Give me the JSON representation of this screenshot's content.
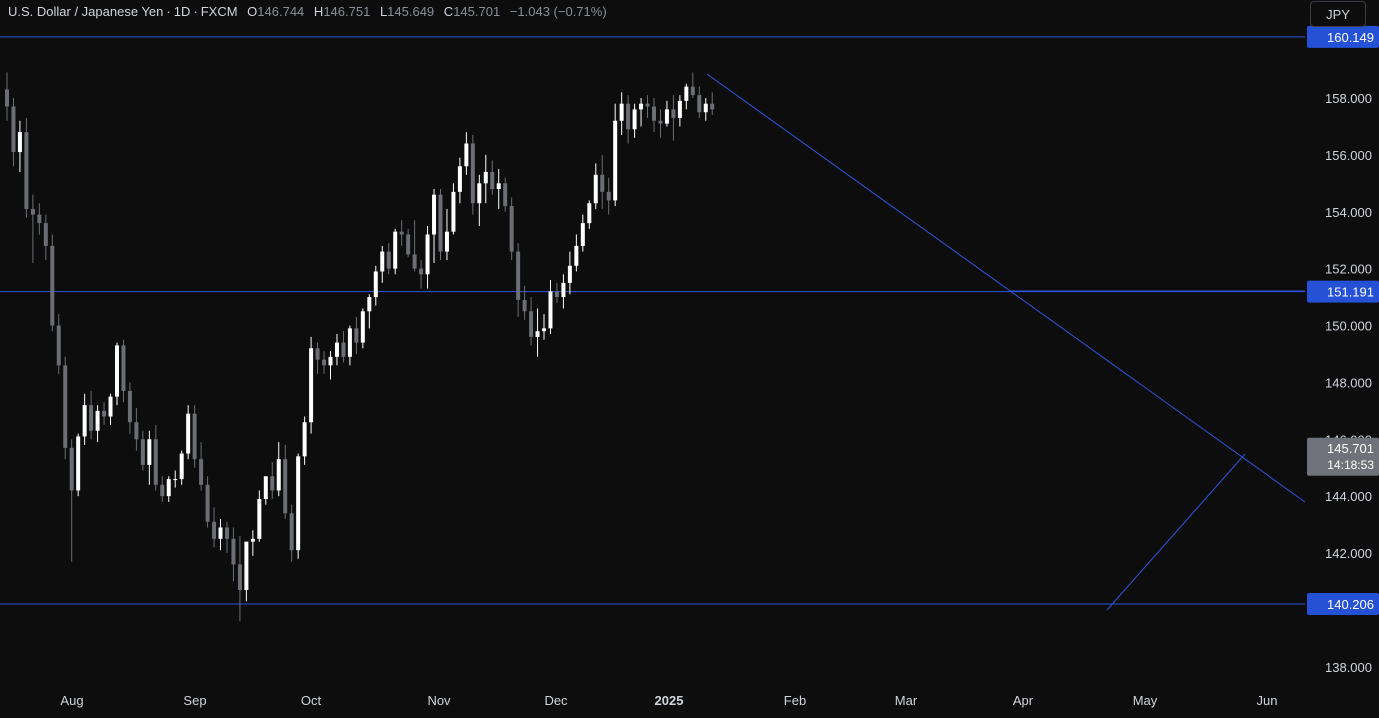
{
  "header": {
    "symbol": "U.S. Dollar / Japanese Yen",
    "interval": "1D",
    "exchange": "FXCM",
    "open_label": "O",
    "open": "146.744",
    "high_label": "H",
    "high": "146.751",
    "low_label": "L",
    "low": "145.649",
    "close_label": "C",
    "close": "145.701",
    "change": "−1.043 (−0.71%)",
    "currency": "JPY"
  },
  "colors": {
    "background": "#0d0d0d",
    "bull": "#ffffff",
    "bear": "#6b6e75",
    "line": "#2f55e0",
    "label_bg": "#2451d6",
    "price_label_bg": "#6f727a",
    "axis_text": "#d1d4dc"
  },
  "chart_data": {
    "type": "candlestick",
    "y_ticks": [
      "138.000",
      "140.000",
      "142.000",
      "144.000",
      "146.000",
      "148.000",
      "150.000",
      "152.000",
      "154.000",
      "156.000",
      "158.000"
    ],
    "ylim": [
      137.0,
      161.2
    ],
    "x_labels": [
      "Aug",
      "Sep",
      "Oct",
      "Nov",
      "Dec",
      "2025",
      "Feb",
      "Mar",
      "Apr",
      "May",
      "Jun"
    ],
    "horizontal_levels": [
      {
        "value": 160.149,
        "label": "160.149"
      },
      {
        "value": 151.191,
        "label": "151.191"
      },
      {
        "value": 140.206,
        "label": "140.206"
      }
    ],
    "last_price": {
      "value": 145.701,
      "label": "145.701",
      "countdown": "14:18:53"
    },
    "trendlines": [
      {
        "name": "falling-trendline",
        "from": {
          "bar": 0,
          "price": 158.9
        },
        "to": {
          "bar": 4,
          "price": 143.8
        }
      },
      {
        "name": "rising-trendline",
        "from": {
          "bar": 1,
          "price": 139.9
        },
        "to": {
          "bar": 2,
          "price": 145.3
        }
      },
      {
        "name": "march-high-line",
        "from": {
          "bar": 3,
          "price": 151.191
        },
        "to": {
          "bar": 5,
          "price": 151.191
        }
      }
    ],
    "candles_ohlc": [
      [
        158.3,
        158.9,
        157.2,
        157.7
      ],
      [
        157.7,
        158.0,
        155.6,
        156.1
      ],
      [
        156.1,
        157.2,
        155.4,
        156.8
      ],
      [
        156.8,
        157.3,
        153.8,
        154.1
      ],
      [
        154.1,
        154.6,
        152.2,
        153.9
      ],
      [
        153.9,
        154.3,
        153.2,
        153.6
      ],
      [
        153.6,
        153.9,
        152.3,
        152.8
      ],
      [
        152.8,
        153.2,
        149.8,
        150.0
      ],
      [
        150.0,
        150.4,
        148.3,
        148.6
      ],
      [
        148.6,
        148.9,
        145.3,
        145.7
      ],
      [
        145.7,
        146.0,
        141.7,
        144.2
      ],
      [
        144.2,
        146.2,
        144.0,
        146.1
      ],
      [
        146.1,
        147.6,
        145.8,
        147.2
      ],
      [
        147.2,
        147.7,
        146.0,
        146.3
      ],
      [
        146.3,
        147.2,
        145.9,
        147.0
      ],
      [
        147.0,
        147.3,
        146.5,
        146.8
      ],
      [
        146.8,
        147.6,
        146.5,
        147.5
      ],
      [
        147.5,
        149.4,
        147.2,
        149.3
      ],
      [
        149.3,
        149.5,
        147.3,
        147.7
      ],
      [
        147.7,
        148.0,
        146.2,
        146.6
      ],
      [
        146.6,
        147.1,
        145.6,
        146.0
      ],
      [
        146.0,
        146.3,
        144.9,
        145.1
      ],
      [
        145.1,
        146.3,
        144.4,
        146.0
      ],
      [
        146.0,
        146.5,
        144.2,
        144.4
      ],
      [
        144.4,
        144.7,
        143.8,
        144.0
      ],
      [
        144.0,
        144.7,
        143.8,
        144.6
      ],
      [
        144.6,
        144.9,
        144.3,
        144.6
      ],
      [
        144.6,
        145.6,
        144.4,
        145.5
      ],
      [
        145.5,
        147.2,
        145.3,
        146.9
      ],
      [
        146.9,
        147.2,
        145.0,
        145.3
      ],
      [
        145.3,
        145.9,
        144.2,
        144.4
      ],
      [
        144.4,
        144.7,
        142.9,
        143.1
      ],
      [
        143.1,
        143.6,
        142.2,
        142.5
      ],
      [
        142.5,
        143.2,
        142.1,
        142.9
      ],
      [
        142.9,
        143.1,
        142.0,
        142.5
      ],
      [
        142.5,
        142.9,
        141.0,
        141.6
      ],
      [
        141.6,
        142.6,
        139.6,
        140.7
      ],
      [
        140.7,
        142.4,
        140.3,
        142.4
      ],
      [
        142.4,
        142.8,
        141.9,
        142.5
      ],
      [
        142.5,
        144.2,
        142.4,
        143.9
      ],
      [
        143.9,
        144.7,
        143.7,
        144.7
      ],
      [
        144.7,
        145.2,
        143.9,
        144.2
      ],
      [
        144.2,
        145.9,
        144.0,
        145.3
      ],
      [
        145.3,
        145.8,
        143.2,
        143.4
      ],
      [
        143.4,
        143.7,
        141.7,
        142.1
      ],
      [
        142.1,
        145.5,
        141.8,
        145.4
      ],
      [
        145.4,
        146.8,
        145.1,
        146.6
      ],
      [
        146.6,
        149.6,
        146.2,
        149.2
      ],
      [
        149.2,
        149.4,
        148.3,
        148.8
      ],
      [
        148.8,
        149.1,
        148.3,
        148.6
      ],
      [
        148.6,
        149.1,
        148.1,
        148.9
      ],
      [
        148.9,
        149.7,
        148.6,
        149.4
      ],
      [
        149.4,
        149.8,
        148.7,
        148.9
      ],
      [
        148.9,
        150.0,
        148.6,
        149.9
      ],
      [
        149.9,
        150.3,
        149.0,
        149.4
      ],
      [
        149.4,
        150.6,
        149.2,
        150.5
      ],
      [
        150.5,
        151.1,
        149.9,
        151.0
      ],
      [
        151.0,
        152.1,
        150.7,
        151.9
      ],
      [
        151.9,
        152.8,
        151.5,
        152.6
      ],
      [
        152.6,
        152.9,
        151.8,
        152.0
      ],
      [
        152.0,
        153.4,
        151.8,
        153.3
      ],
      [
        153.3,
        153.7,
        152.8,
        153.2
      ],
      [
        153.2,
        153.4,
        152.4,
        152.5
      ],
      [
        152.5,
        153.7,
        151.9,
        152.0
      ],
      [
        152.0,
        152.3,
        151.3,
        151.8
      ],
      [
        151.8,
        153.5,
        151.3,
        153.2
      ],
      [
        153.2,
        154.8,
        152.2,
        154.6
      ],
      [
        154.6,
        154.8,
        152.3,
        152.6
      ],
      [
        152.6,
        154.1,
        152.3,
        153.3
      ],
      [
        153.3,
        155.0,
        153.2,
        154.7
      ],
      [
        154.7,
        155.9,
        154.3,
        155.6
      ],
      [
        155.6,
        156.8,
        155.3,
        156.4
      ],
      [
        156.4,
        156.7,
        153.9,
        154.3
      ],
      [
        154.3,
        155.3,
        153.5,
        155.0
      ],
      [
        155.0,
        156.0,
        154.3,
        155.4
      ],
      [
        155.4,
        155.8,
        154.6,
        154.8
      ],
      [
        154.8,
        155.5,
        154.1,
        155.0
      ],
      [
        155.0,
        155.2,
        154.0,
        154.2
      ],
      [
        154.2,
        154.5,
        152.3,
        152.6
      ],
      [
        152.6,
        152.9,
        150.3,
        150.9
      ],
      [
        150.9,
        151.4,
        150.2,
        150.5
      ],
      [
        150.5,
        151.0,
        149.3,
        149.6
      ],
      [
        149.6,
        150.6,
        148.9,
        149.8
      ],
      [
        149.8,
        150.4,
        149.5,
        149.9
      ],
      [
        149.9,
        151.6,
        149.7,
        151.2
      ],
      [
        151.2,
        151.5,
        150.8,
        151.0
      ],
      [
        151.0,
        151.8,
        150.6,
        151.5
      ],
      [
        151.5,
        152.6,
        151.1,
        152.1
      ],
      [
        152.1,
        153.2,
        151.9,
        152.8
      ],
      [
        152.8,
        153.9,
        152.6,
        153.6
      ],
      [
        153.6,
        154.4,
        153.4,
        154.3
      ],
      [
        154.3,
        155.7,
        154.1,
        155.3
      ],
      [
        155.3,
        156.0,
        154.1,
        154.7
      ],
      [
        154.7,
        155.2,
        153.9,
        154.4
      ],
      [
        154.4,
        157.8,
        154.2,
        157.2
      ],
      [
        157.2,
        158.2,
        156.7,
        157.8
      ],
      [
        157.8,
        158.1,
        156.4,
        156.9
      ],
      [
        156.9,
        157.8,
        156.6,
        157.6
      ],
      [
        157.6,
        158.0,
        157.0,
        157.8
      ],
      [
        157.8,
        158.1,
        157.3,
        157.7
      ],
      [
        157.7,
        158.0,
        156.8,
        157.2
      ],
      [
        157.2,
        157.6,
        156.6,
        157.1
      ],
      [
        157.1,
        157.9,
        157.0,
        157.6
      ],
      [
        157.6,
        158.1,
        156.5,
        157.3
      ],
      [
        157.3,
        158.1,
        157.0,
        157.9
      ],
      [
        157.9,
        158.5,
        157.6,
        158.4
      ],
      [
        158.4,
        158.9,
        158.0,
        158.1
      ],
      [
        158.1,
        158.4,
        157.3,
        157.5
      ],
      [
        157.5,
        158.0,
        157.2,
        157.8
      ],
      [
        157.8,
        158.2,
        157.4,
        157.6
      ]
    ]
  }
}
